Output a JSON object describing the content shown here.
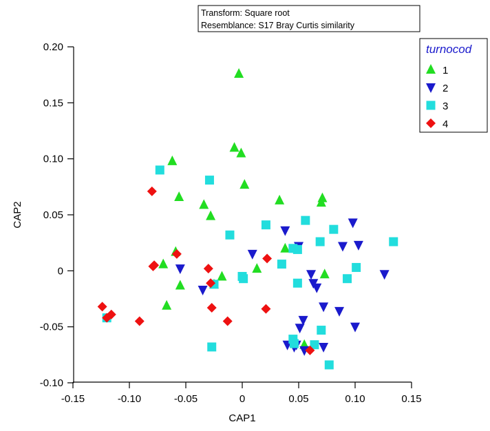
{
  "chart_data": {
    "type": "scatter",
    "title": "",
    "xlabel": "CAP1",
    "ylabel": "CAP2",
    "xlim": [
      -0.15,
      0.15
    ],
    "ylim": [
      -0.1,
      0.2
    ],
    "xticks": [
      "-0.15",
      "-0.10",
      "-0.05",
      "0",
      "0.05",
      "0.10",
      "0.15"
    ],
    "yticks": [
      "-0.10",
      "-0.05",
      "0",
      "0.05",
      "0.10",
      "0.15",
      "0.20"
    ],
    "grid": false,
    "legend_position": "top-right",
    "info_box": {
      "line1": "Transform: Square root",
      "line2": "Resemblance: S17 Bray Curtis similarity"
    },
    "legend": {
      "title": "turnocod",
      "entries": [
        "1",
        "2",
        "3",
        "4"
      ]
    },
    "series": [
      {
        "name": "1",
        "marker": "triangle-up",
        "color": "#22dd22",
        "points": [
          [
            -0.003,
            0.176
          ],
          [
            -0.007,
            0.11
          ],
          [
            -0.001,
            0.105
          ],
          [
            0.002,
            0.077
          ],
          [
            -0.062,
            0.098
          ],
          [
            -0.056,
            0.066
          ],
          [
            -0.034,
            0.059
          ],
          [
            -0.028,
            0.049
          ],
          [
            0.033,
            0.063
          ],
          [
            0.071,
            0.065
          ],
          [
            0.07,
            0.061
          ],
          [
            -0.059,
            0.017
          ],
          [
            -0.07,
            0.006
          ],
          [
            -0.055,
            -0.013
          ],
          [
            -0.067,
            -0.031
          ],
          [
            -0.018,
            -0.005
          ],
          [
            -0.025,
            -0.012
          ],
          [
            0.013,
            0.002
          ],
          [
            0.038,
            0.02
          ],
          [
            0.073,
            -0.003
          ],
          [
            0.055,
            -0.066
          ]
        ]
      },
      {
        "name": "2",
        "marker": "triangle-down",
        "color": "#1a1acc",
        "points": [
          [
            0.038,
            0.036
          ],
          [
            0.05,
            0.022
          ],
          [
            0.098,
            0.043
          ],
          [
            0.103,
            0.023
          ],
          [
            0.089,
            0.022
          ],
          [
            0.009,
            0.015
          ],
          [
            -0.055,
            0.002
          ],
          [
            -0.035,
            -0.017
          ],
          [
            0.061,
            -0.003
          ],
          [
            0.063,
            -0.011
          ],
          [
            0.066,
            -0.015
          ],
          [
            0.126,
            -0.003
          ],
          [
            0.072,
            -0.032
          ],
          [
            0.086,
            -0.036
          ],
          [
            0.054,
            -0.044
          ],
          [
            0.051,
            -0.051
          ],
          [
            0.04,
            -0.066
          ],
          [
            0.046,
            -0.068
          ],
          [
            0.055,
            -0.071
          ],
          [
            0.072,
            -0.068
          ],
          [
            0.1,
            -0.05
          ],
          [
            0.048,
            -0.066
          ]
        ]
      },
      {
        "name": "3",
        "marker": "square",
        "color": "#22dddd",
        "points": [
          [
            -0.073,
            0.09
          ],
          [
            -0.029,
            0.081
          ],
          [
            -0.011,
            0.032
          ],
          [
            0.021,
            0.041
          ],
          [
            0.056,
            0.045
          ],
          [
            0.081,
            0.037
          ],
          [
            0.134,
            0.026
          ],
          [
            0.069,
            0.026
          ],
          [
            0.045,
            0.02
          ],
          [
            0.049,
            0.019
          ],
          [
            0.035,
            0.006
          ],
          [
            0.101,
            0.003
          ],
          [
            0.0,
            -0.005
          ],
          [
            0.001,
            -0.007
          ],
          [
            0.049,
            -0.011
          ],
          [
            0.093,
            -0.007
          ],
          [
            -0.12,
            -0.042
          ],
          [
            -0.027,
            -0.068
          ],
          [
            0.045,
            -0.061
          ],
          [
            0.046,
            -0.065
          ],
          [
            0.07,
            -0.053
          ],
          [
            0.064,
            -0.066
          ],
          [
            0.077,
            -0.084
          ],
          [
            -0.025,
            -0.012
          ]
        ]
      },
      {
        "name": "4",
        "marker": "diamond",
        "color": "#ee1111",
        "points": [
          [
            -0.08,
            0.071
          ],
          [
            -0.058,
            0.015
          ],
          [
            -0.079,
            0.004
          ],
          [
            -0.078,
            0.005
          ],
          [
            -0.03,
            0.002
          ],
          [
            -0.028,
            -0.011
          ],
          [
            0.022,
            0.011
          ],
          [
            -0.027,
            -0.033
          ],
          [
            -0.013,
            -0.045
          ],
          [
            0.021,
            -0.034
          ],
          [
            -0.091,
            -0.045
          ],
          [
            -0.124,
            -0.032
          ],
          [
            -0.116,
            -0.039
          ],
          [
            -0.12,
            -0.042
          ],
          [
            0.06,
            -0.071
          ]
        ]
      }
    ]
  }
}
